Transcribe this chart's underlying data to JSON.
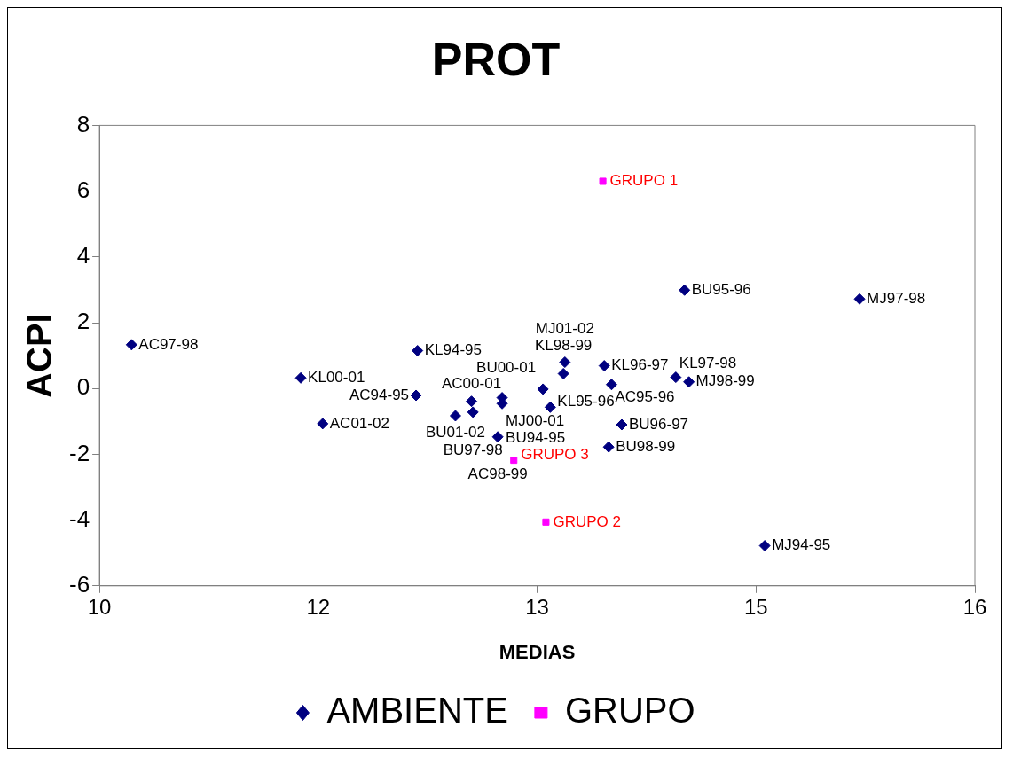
{
  "chart_data": {
    "type": "scatter",
    "title": "PROT",
    "xlabel": "MEDIAS",
    "ylabel": "ACPI",
    "xlim": [
      10,
      16
    ],
    "xticks": [
      10,
      {
        "value": 11.5,
        "label": "12"
      },
      13,
      {
        "value": 14.5,
        "label": "15"
      },
      16
    ],
    "ylim": [
      -6,
      8
    ],
    "yticks": [
      -6,
      -4,
      -2,
      0,
      2,
      4,
      6,
      8
    ],
    "grid": false,
    "legend": "bottom",
    "series": [
      {
        "name": "AMBIENTE",
        "color": "#000080",
        "marker": "diamond",
        "x": [
          10.22,
          11.38,
          11.53,
          12.18,
          12.17,
          12.44,
          12.55,
          12.56,
          12.76,
          12.76,
          12.73,
          13.04,
          13.09,
          13.18,
          13.19,
          13.46,
          13.51,
          13.58,
          13.49,
          13.95,
          14.04,
          14.01,
          15.21,
          14.56
        ],
        "values": [
          1.33,
          0.32,
          -1.07,
          1.15,
          -0.21,
          -0.83,
          -0.39,
          -0.72,
          -0.28,
          -0.46,
          -1.47,
          -0.02,
          -0.57,
          0.45,
          0.8,
          0.69,
          0.12,
          -1.1,
          -1.78,
          0.34,
          0.2,
          2.99,
          2.72,
          -4.78
        ]
      },
      {
        "name": "GRUPO",
        "color": "#ff00ff",
        "marker": "square",
        "x": [
          13.45,
          12.84,
          13.06
        ],
        "values": [
          6.3,
          -2.18,
          -4.06
        ]
      }
    ],
    "annotations": [
      {
        "text": "AC97-98",
        "x": 10.22,
        "y": 1.33
      },
      {
        "text": "KL00-01",
        "x": 11.38,
        "y": 0.32
      },
      {
        "text": "AC01-02",
        "x": 11.53,
        "y": -1.07
      },
      {
        "text": "KL94-95",
        "x": 12.18,
        "y": 1.15
      },
      {
        "text": "AC94-95",
        "x": 12.17,
        "y": -0.21
      },
      {
        "text": "BU01-02",
        "x": 12.44,
        "y": -0.83
      },
      {
        "text": "AC00-01",
        "x": 12.55,
        "y": -0.39
      },
      {
        "text": "BU97-98",
        "x": 12.56,
        "y": -0.72
      },
      {
        "text": "MJ00-01",
        "x": 12.76,
        "y": -0.28
      },
      {
        "text": "BU94-95",
        "x": 12.76,
        "y": -0.46
      },
      {
        "text": "AC98-99",
        "x": 12.73,
        "y": -1.47
      },
      {
        "text": "BU00-01",
        "x": 13.04,
        "y": -0.02
      },
      {
        "text": "KL95-96",
        "x": 13.09,
        "y": -0.57
      },
      {
        "text": "KL98-99",
        "x": 13.18,
        "y": 0.45
      },
      {
        "text": "MJ01-02",
        "x": 13.19,
        "y": 0.8
      },
      {
        "text": "KL96-97",
        "x": 13.46,
        "y": 0.69
      },
      {
        "text": "AC95-96",
        "x": 13.51,
        "y": 0.12
      },
      {
        "text": "BU96-97",
        "x": 13.58,
        "y": -1.1
      },
      {
        "text": "BU98-99",
        "x": 13.49,
        "y": -1.78
      },
      {
        "text": "KL97-98",
        "x": 13.95,
        "y": 0.34
      },
      {
        "text": "MJ98-99",
        "x": 14.04,
        "y": 0.2
      },
      {
        "text": "BU95-96",
        "x": 14.01,
        "y": 2.99
      },
      {
        "text": "MJ97-98",
        "x": 15.21,
        "y": 2.72
      },
      {
        "text": "MJ94-95",
        "x": 14.56,
        "y": -4.78
      },
      {
        "text": "GRUPO 1",
        "x": 13.45,
        "y": 6.3
      },
      {
        "text": "GRUPO 3",
        "x": 12.84,
        "y": -2.18
      },
      {
        "text": "GRUPO 2",
        "x": 13.06,
        "y": -4.06
      }
    ]
  }
}
